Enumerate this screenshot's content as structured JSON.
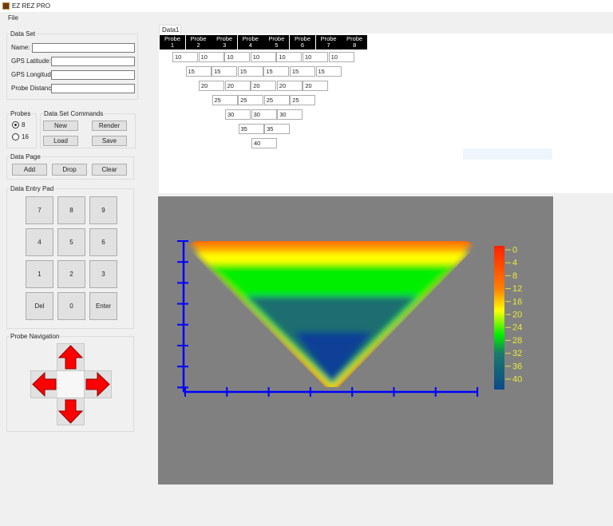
{
  "app": {
    "title": "EZ REZ PRO",
    "menu": [
      "File"
    ]
  },
  "data_set": {
    "legend": "Data Set",
    "name_label": "Name:",
    "name_value": "",
    "lat_label": "GPS Latitude:",
    "lat_value": "",
    "lon_label": "GPS Longitude:",
    "lon_value": "",
    "dist_label": "Probe Distance:",
    "dist_value": ""
  },
  "probes": {
    "legend": "Probes",
    "options": [
      "8",
      "16"
    ],
    "selected": "8"
  },
  "commands": {
    "legend": "Data Set Commands",
    "new": "New",
    "render": "Render",
    "load": "Load",
    "save": "Save"
  },
  "data_page": {
    "legend": "Data Page",
    "add": "Add",
    "drop": "Drop",
    "clear": "Clear"
  },
  "keypad": {
    "legend": "Data Entry Pad",
    "keys": [
      "7",
      "8",
      "9",
      "4",
      "5",
      "6",
      "1",
      "2",
      "3",
      "Del",
      "0",
      "Enter"
    ]
  },
  "navigation": {
    "legend": "Probe Navigation"
  },
  "grid": {
    "tab": "Data1",
    "headers": [
      "Probe\n1",
      "Probe\n2",
      "Probe\n3",
      "Probe\n4",
      "Probe\n5",
      "Probe\n6",
      "Probe\n7",
      "Probe\n8"
    ],
    "rows": [
      [
        "10",
        "10",
        "10",
        "10",
        "10",
        "10",
        "10"
      ],
      [
        "15",
        "15",
        "15",
        "15",
        "15",
        "15"
      ],
      [
        "20",
        "20",
        "20",
        "20",
        "20"
      ],
      [
        "25",
        "25",
        "25",
        "25"
      ],
      [
        "30",
        "30",
        "30"
      ],
      [
        "35",
        "35"
      ],
      [
        "40"
      ]
    ]
  },
  "chart_data": {
    "type": "heatmap",
    "colorbar": {
      "ticks": [
        "0",
        "4",
        "8",
        "12",
        "16",
        "20",
        "24",
        "28",
        "32",
        "36",
        "40"
      ],
      "range": [
        0,
        40
      ],
      "colors": [
        "#ff2000",
        "#ff8000",
        "#ffff00",
        "#00ee00",
        "#1a7a6a",
        "#0a4a8a"
      ]
    },
    "x_ticks": 8,
    "y_ticks": 8,
    "axis_color": "#0000ff",
    "background": "#808080"
  }
}
